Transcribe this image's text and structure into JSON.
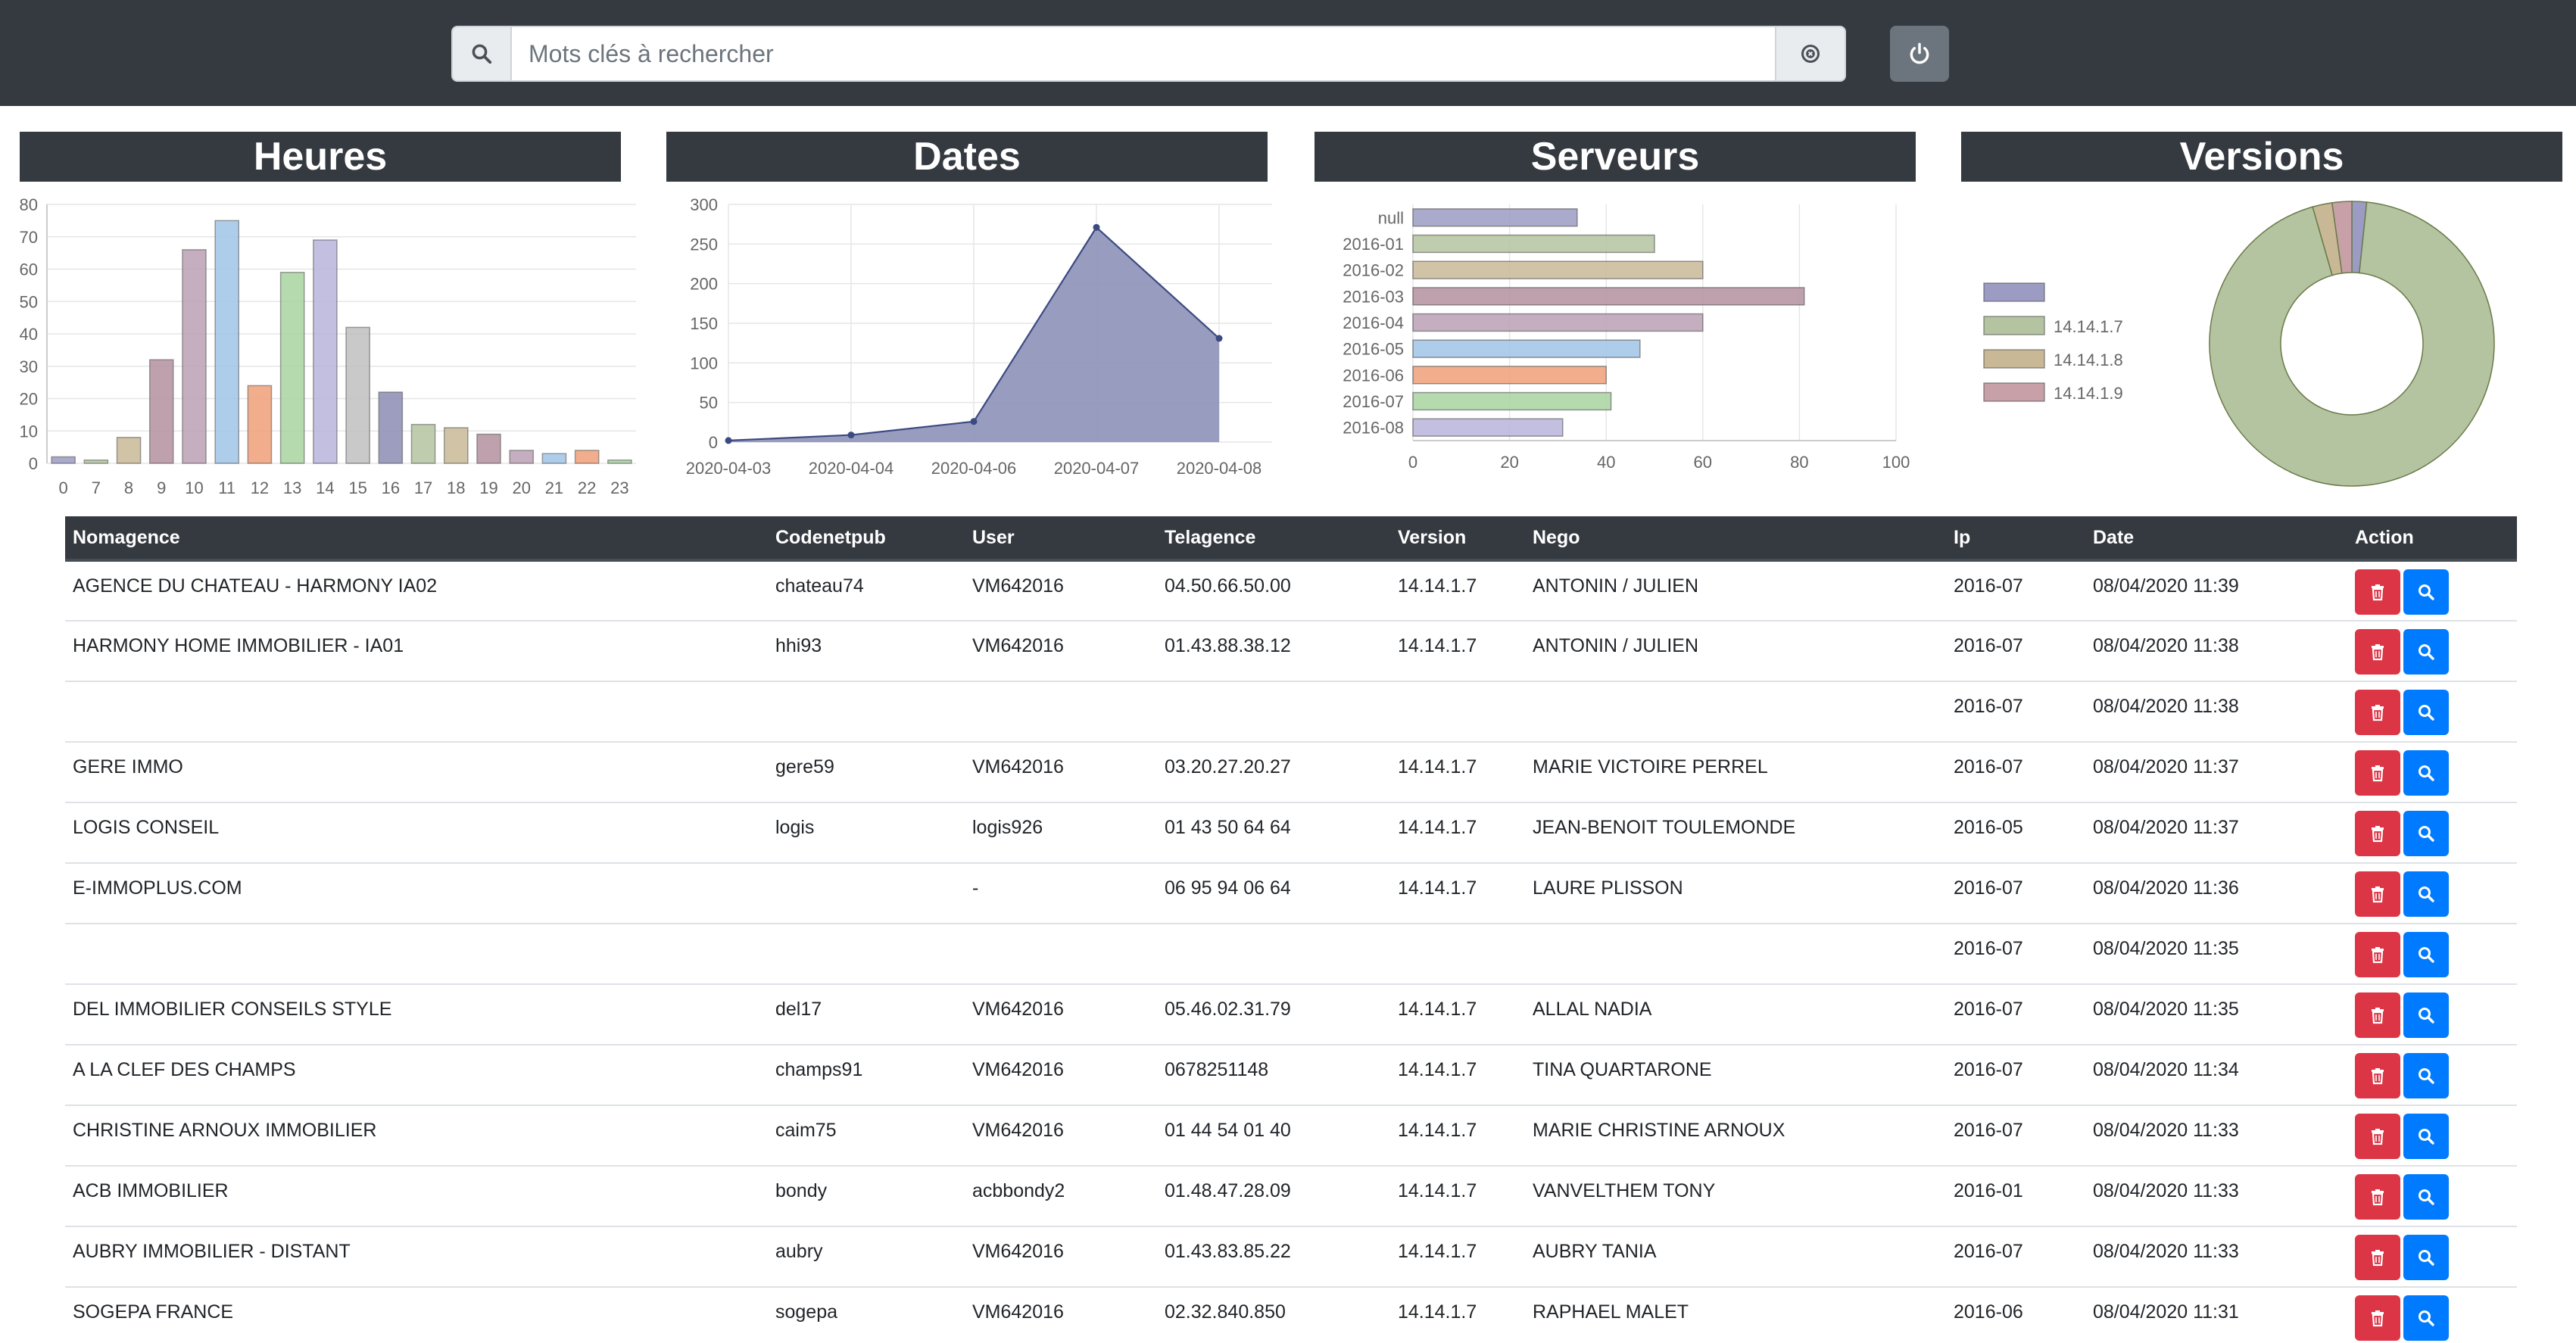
{
  "search": {
    "placeholder": "Mots clés à rechercher"
  },
  "icons": {
    "search": "search-icon",
    "clear": "clear-circle-icon",
    "power": "power-icon",
    "trash": "trash-icon",
    "magnifier": "magnifier-icon"
  },
  "colors": {
    "dark": "#343a40",
    "danger": "#dc3545",
    "primary": "#007bff",
    "secondary": "#6c757d"
  },
  "panels": {
    "heures": "Heures",
    "dates": "Dates",
    "serveurs": "Serveurs",
    "versions": "Versions"
  },
  "chart_data": [
    {
      "id": "heures",
      "type": "bar",
      "title": "Heures",
      "categories": [
        "0",
        "7",
        "8",
        "9",
        "10",
        "11",
        "12",
        "13",
        "14",
        "15",
        "16",
        "17",
        "18",
        "19",
        "20",
        "21",
        "22",
        "23"
      ],
      "values": [
        2,
        1,
        8,
        32,
        66,
        75,
        24,
        59,
        69,
        42,
        22,
        12,
        11,
        9,
        4,
        3,
        4,
        1
      ],
      "colors": [
        "#9b9bc4",
        "#b4c4a0",
        "#c8b896",
        "#b490a0",
        "#bba0b4",
        "#a0c4e8",
        "#f0a078",
        "#a8d4a0",
        "#b8b4dc",
        "#c0c0c0",
        "#8c8cb4",
        "#b4c4a0",
        "#c8b896",
        "#b490a0",
        "#bba0b4",
        "#a0c4e8",
        "#f0a078",
        "#a8d4a0"
      ],
      "yticks": [
        "0",
        "10",
        "20",
        "30",
        "40",
        "50",
        "60",
        "70",
        "80"
      ],
      "ylim": [
        0,
        80
      ]
    },
    {
      "id": "dates",
      "type": "area",
      "title": "Dates",
      "categories": [
        "2020-04-03",
        "2020-04-04",
        "2020-04-06",
        "2020-04-07",
        "2020-04-08"
      ],
      "values": [
        2,
        9,
        26,
        271,
        131
      ],
      "yticks": [
        "0",
        "50",
        "100",
        "150",
        "200",
        "250",
        "300"
      ],
      "ylim": [
        0,
        300
      ],
      "color": "#8d92b8"
    },
    {
      "id": "serveurs",
      "type": "bar",
      "orientation": "horizontal",
      "title": "Serveurs",
      "categories": [
        "null",
        "2016-01",
        "2016-02",
        "2016-03",
        "2016-04",
        "2016-05",
        "2016-06",
        "2016-07",
        "2016-08"
      ],
      "values": [
        34,
        50,
        60,
        81,
        60,
        47,
        40,
        41,
        31
      ],
      "colors": [
        "#9b9bc4",
        "#b4c4a0",
        "#c8b896",
        "#b490a0",
        "#bba0b4",
        "#a0c4e8",
        "#f0a078",
        "#a8d4a0",
        "#b8b4dc"
      ],
      "xticks": [
        "0",
        "20",
        "40",
        "60",
        "80",
        "100"
      ],
      "xlim": [
        0,
        100
      ]
    },
    {
      "id": "versions",
      "type": "pie",
      "title": "Versions",
      "legend": [
        "",
        "14.14.1.7",
        "14.14.1.8",
        "14.14.1.9"
      ],
      "values": [
        6,
        338,
        8,
        8
      ],
      "colors": [
        "#9b9bc4",
        "#b4c4a0",
        "#c8b896",
        "#c8a0a8"
      ]
    }
  ],
  "table": {
    "headers": [
      "Nomagence",
      "Codenetpub",
      "User",
      "Telagence",
      "Version",
      "Nego",
      "Ip",
      "Date",
      "Action"
    ],
    "rows": [
      [
        "AGENCE DU CHATEAU - HARMONY IA02",
        "chateau74",
        "VM642016",
        "04.50.66.50.00",
        "14.14.1.7",
        "ANTONIN / JULIEN",
        "2016-07",
        "08/04/2020 11:39"
      ],
      [
        "HARMONY HOME IMMOBILIER - IA01",
        "hhi93",
        "VM642016",
        "01.43.88.38.12",
        "14.14.1.7",
        "ANTONIN / JULIEN",
        "2016-07",
        "08/04/2020 11:38"
      ],
      [
        "",
        "",
        "",
        "",
        "",
        "",
        "2016-07",
        "08/04/2020 11:38"
      ],
      [
        "GERE IMMO",
        "gere59",
        "VM642016",
        "03.20.27.20.27",
        "14.14.1.7",
        "MARIE VICTOIRE PERREL",
        "2016-07",
        "08/04/2020 11:37"
      ],
      [
        "LOGIS CONSEIL",
        "logis",
        "logis926",
        "01 43 50 64 64",
        "14.14.1.7",
        "JEAN-BENOIT TOULEMONDE",
        "2016-05",
        "08/04/2020 11:37"
      ],
      [
        "E-IMMOPLUS.COM",
        "",
        "-",
        "06 95 94 06 64",
        "14.14.1.7",
        "LAURE PLISSON",
        "2016-07",
        "08/04/2020 11:36"
      ],
      [
        "",
        "",
        "",
        "",
        "",
        "",
        "2016-07",
        "08/04/2020 11:35"
      ],
      [
        "DEL IMMOBILIER CONSEILS STYLE",
        "del17",
        "VM642016",
        "05.46.02.31.79",
        "14.14.1.7",
        "ALLAL NADIA",
        "2016-07",
        "08/04/2020 11:35"
      ],
      [
        "A LA CLEF DES CHAMPS",
        "champs91",
        "VM642016",
        "0678251148",
        "14.14.1.7",
        "TINA QUARTARONE",
        "2016-07",
        "08/04/2020 11:34"
      ],
      [
        "CHRISTINE ARNOUX IMMOBILIER",
        "caim75",
        "VM642016",
        "01 44 54 01 40",
        "14.14.1.7",
        "MARIE CHRISTINE ARNOUX",
        "2016-07",
        "08/04/2020 11:33"
      ],
      [
        "ACB IMMOBILIER",
        "bondy",
        "acbbondy2",
        "01.48.47.28.09",
        "14.14.1.7",
        "VANVELTHEM TONY",
        "2016-01",
        "08/04/2020 11:33"
      ],
      [
        "AUBRY IMMOBILIER - DISTANT",
        "aubry",
        "VM642016",
        "01.43.83.85.22",
        "14.14.1.7",
        "AUBRY TANIA",
        "2016-07",
        "08/04/2020 11:33"
      ],
      [
        "SOGEPA FRANCE",
        "sogepa",
        "VM642016",
        "02.32.840.850",
        "14.14.1.7",
        "RAPHAEL MALET",
        "2016-06",
        "08/04/2020 11:31"
      ]
    ]
  }
}
